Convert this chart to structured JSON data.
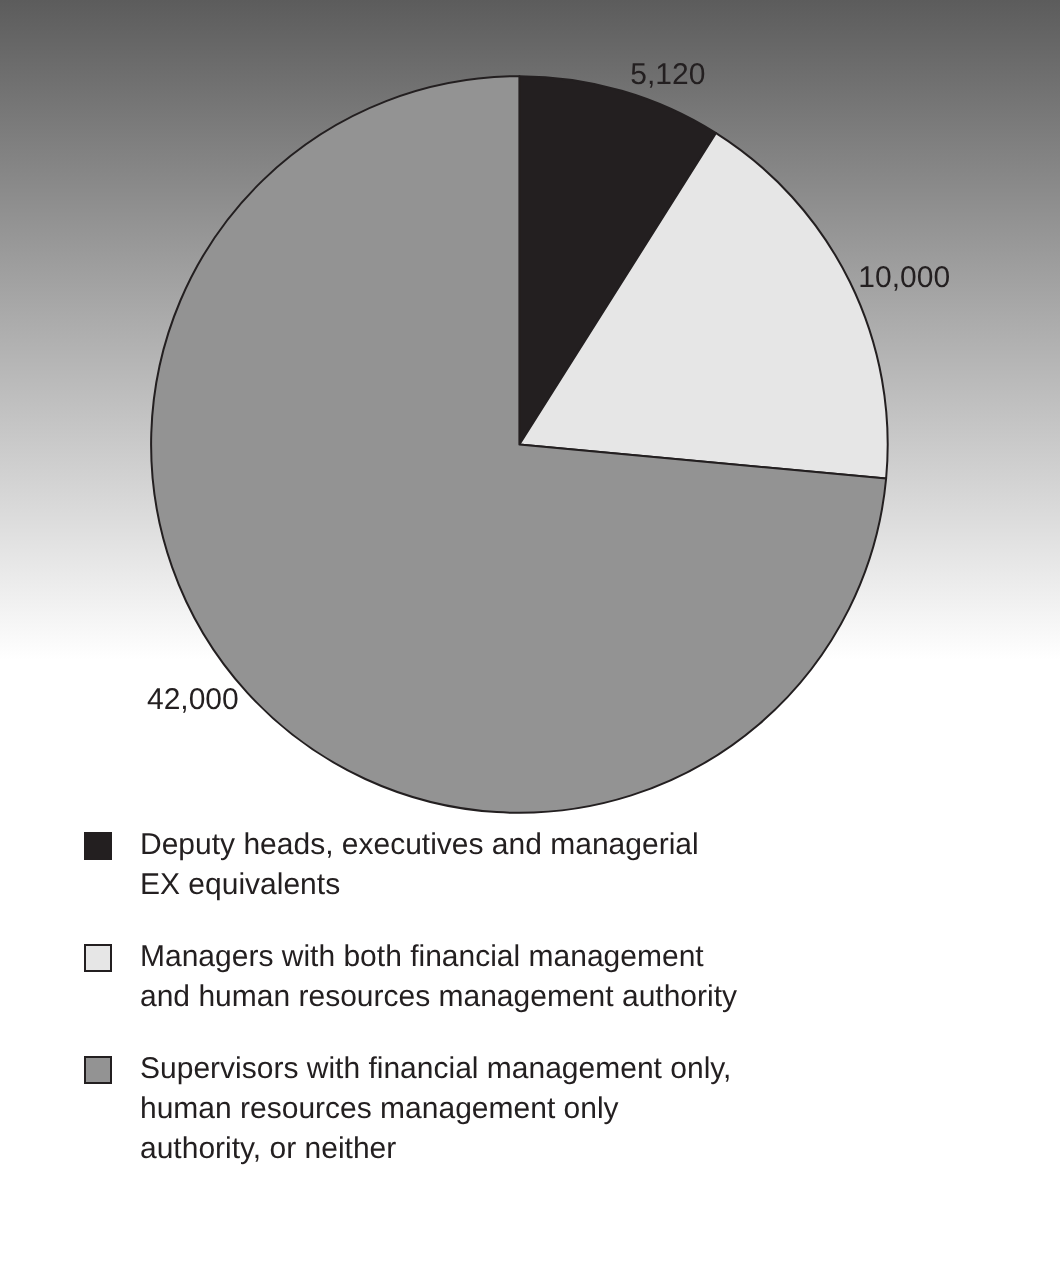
{
  "chart_data": {
    "type": "pie",
    "categories": [
      "Deputy heads, executives and managerial EX equivalents",
      "Managers with both financial management and human resources management authority",
      "Supervisors with financial management only, human resources management only authority, or neither"
    ],
    "values": [
      5120,
      10000,
      42000
    ],
    "value_labels": [
      "5,120",
      "10,000",
      "42,000"
    ],
    "colors": [
      "#231f20",
      "#e6e6e6",
      "#939393"
    ],
    "legend": "bottom"
  }
}
